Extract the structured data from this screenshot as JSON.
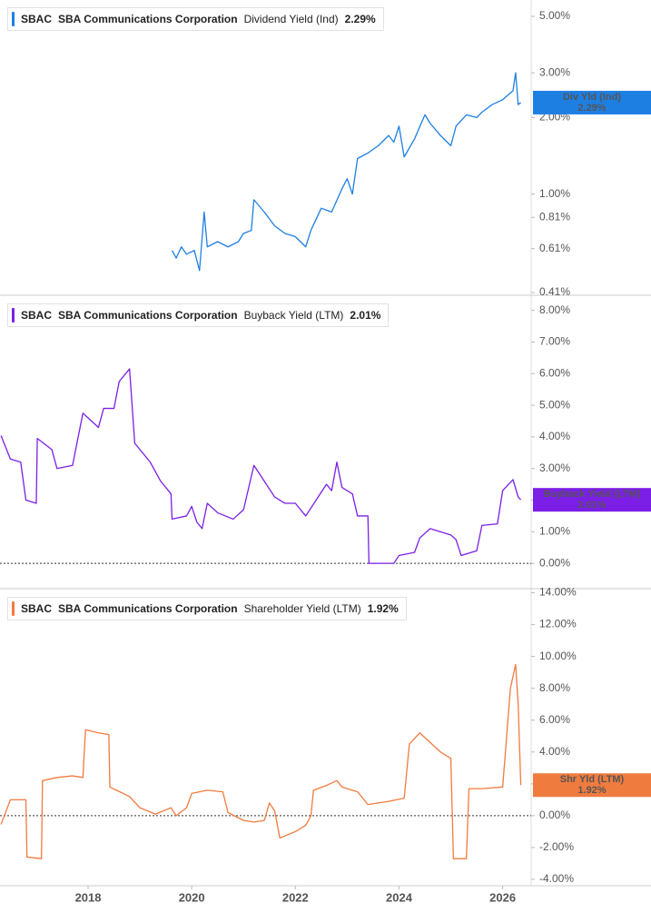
{
  "chart_data": [
    {
      "type": "line",
      "ticker": "SBAC",
      "company": "SBA Communications Corporation",
      "log_scale": true,
      "zero_line": false,
      "badge_label": "Div Yld (Ind)",
      "last_value": 2.29,
      "last_value_label": "2.29%",
      "x": [
        2019.62,
        2019.7,
        2019.8,
        2019.9,
        2020.05,
        2020.15,
        2020.24,
        2020.3,
        2020.5,
        2020.7,
        2020.9,
        2021.0,
        2021.15,
        2021.2,
        2021.4,
        2021.6,
        2021.8,
        2022.0,
        2022.2,
        2022.3,
        2022.5,
        2022.7,
        2022.9,
        2023.0,
        2023.1,
        2023.2,
        2023.4,
        2023.6,
        2023.8,
        2023.9,
        2024.0,
        2024.1,
        2024.3,
        2024.5,
        2024.6,
        2024.8,
        2025.0,
        2025.1,
        2025.3,
        2025.5,
        2025.6,
        2025.8,
        2026.0,
        2026.2,
        2026.25,
        2026.3,
        2026.35
      ],
      "series": [
        {
          "name": "Dividend Yield (Ind)",
          "color": "#1e7fe3",
          "values": [
            0.6,
            0.56,
            0.62,
            0.58,
            0.6,
            0.5,
            0.85,
            0.62,
            0.65,
            0.62,
            0.65,
            0.7,
            0.72,
            0.95,
            0.85,
            0.75,
            0.7,
            0.68,
            0.62,
            0.72,
            0.88,
            0.85,
            1.05,
            1.15,
            1.0,
            1.38,
            1.45,
            1.55,
            1.7,
            1.6,
            1.85,
            1.4,
            1.65,
            2.05,
            1.9,
            1.7,
            1.55,
            1.85,
            2.05,
            2.0,
            2.1,
            2.25,
            2.35,
            2.55,
            3.0,
            2.25,
            2.29
          ]
        }
      ],
      "xlim": [
        2016.3,
        2026.55
      ],
      "ylim": [
        0.4,
        5.8
      ],
      "yticks": [
        {
          "value": 5,
          "label": "5.00%"
        },
        {
          "value": 3,
          "label": "3.00%"
        },
        {
          "value": 2,
          "label": "2.00%"
        },
        {
          "value": 1,
          "label": "1.00%"
        },
        {
          "value": 0.81,
          "label": "0.81%"
        },
        {
          "value": 0.61,
          "label": "0.61%"
        },
        {
          "value": 0.41,
          "label": "0.41%"
        }
      ]
    },
    {
      "type": "line",
      "ticker": "SBAC",
      "company": "SBA Communications Corporation",
      "log_scale": false,
      "zero_line": true,
      "badge_label": "Buyback Yield (LTM)",
      "last_value": 2.01,
      "last_value_label": "2.01%",
      "x": [
        2016.32,
        2016.5,
        2016.7,
        2016.8,
        2017.0,
        2017.02,
        2017.3,
        2017.4,
        2017.7,
        2017.9,
        2018.0,
        2018.2,
        2018.3,
        2018.5,
        2018.6,
        2018.8,
        2018.9,
        2019.2,
        2019.4,
        2019.6,
        2019.62,
        2019.9,
        2020.0,
        2020.1,
        2020.2,
        2020.3,
        2020.5,
        2020.8,
        2021.0,
        2021.2,
        2021.4,
        2021.6,
        2021.8,
        2022.0,
        2022.2,
        2022.4,
        2022.6,
        2022.7,
        2022.8,
        2022.9,
        2023.1,
        2023.2,
        2023.4,
        2023.42,
        2023.9,
        2024.0,
        2024.3,
        2024.4,
        2024.6,
        2024.8,
        2025.0,
        2025.1,
        2025.2,
        2025.5,
        2025.6,
        2025.9,
        2026.0,
        2026.2,
        2026.3,
        2026.35
      ],
      "series": [
        {
          "name": "Buyback Yield (LTM)",
          "color": "#7b1fe6",
          "values": [
            4.04,
            3.3,
            3.2,
            2.0,
            1.9,
            3.95,
            3.6,
            3.0,
            3.1,
            4.75,
            4.6,
            4.3,
            4.9,
            4.9,
            5.75,
            6.15,
            3.8,
            3.2,
            2.6,
            2.2,
            1.4,
            1.5,
            1.8,
            1.3,
            1.1,
            1.9,
            1.6,
            1.4,
            1.7,
            3.1,
            2.6,
            2.1,
            1.9,
            1.9,
            1.5,
            2.0,
            2.5,
            2.3,
            3.2,
            2.4,
            2.2,
            1.5,
            1.5,
            0.0,
            0.0,
            0.25,
            0.35,
            0.8,
            1.1,
            1.0,
            0.9,
            0.75,
            0.25,
            0.4,
            1.2,
            1.25,
            2.3,
            2.65,
            2.1,
            2.01
          ]
        }
      ],
      "xlim": [
        2016.3,
        2026.55
      ],
      "ylim": [
        -0.8,
        8.45
      ],
      "yticks": [
        {
          "value": 8,
          "label": "8.00%"
        },
        {
          "value": 7,
          "label": "7.00%"
        },
        {
          "value": 6,
          "label": "6.00%"
        },
        {
          "value": 5,
          "label": "5.00%"
        },
        {
          "value": 4,
          "label": "4.00%"
        },
        {
          "value": 3,
          "label": "3.00%"
        },
        {
          "value": 2,
          "label": "2.00%"
        },
        {
          "value": 1,
          "label": "1.00%"
        },
        {
          "value": 0,
          "label": "0.00%"
        }
      ]
    },
    {
      "type": "line",
      "ticker": "SBAC",
      "company": "SBA Communications Corporation",
      "log_scale": false,
      "zero_line": true,
      "badge_label": "Shr Yld (LTM)",
      "last_value": 1.92,
      "last_value_label": "1.92%",
      "x": [
        2016.32,
        2016.5,
        2016.8,
        2016.82,
        2017.1,
        2017.12,
        2017.4,
        2017.7,
        2017.9,
        2017.95,
        2018.2,
        2018.4,
        2018.42,
        2018.8,
        2019.0,
        2019.3,
        2019.6,
        2019.7,
        2019.9,
        2020.0,
        2020.3,
        2020.6,
        2020.7,
        2021.0,
        2021.2,
        2021.4,
        2021.5,
        2021.6,
        2021.7,
        2022.0,
        2022.2,
        2022.3,
        2022.35,
        2022.6,
        2022.8,
        2022.9,
        2023.2,
        2023.4,
        2023.8,
        2024.1,
        2024.2,
        2024.4,
        2024.6,
        2024.8,
        2025.0,
        2025.05,
        2025.3,
        2025.35,
        2025.6,
        2026.0,
        2026.15,
        2026.25,
        2026.3,
        2026.35
      ],
      "series": [
        {
          "name": "Shareholder Yield (LTM)",
          "color": "#f07b3f",
          "values": [
            -0.55,
            1.0,
            1.0,
            -2.6,
            -2.7,
            2.2,
            2.4,
            2.5,
            2.4,
            5.4,
            5.2,
            5.1,
            1.8,
            1.2,
            0.5,
            0.1,
            0.5,
            0.0,
            0.5,
            1.4,
            1.6,
            1.5,
            0.2,
            -0.3,
            -0.4,
            -0.3,
            0.8,
            0.3,
            -1.4,
            -1.0,
            -0.6,
            0.0,
            1.6,
            1.9,
            2.2,
            1.8,
            1.5,
            0.7,
            0.9,
            1.1,
            4.5,
            5.2,
            4.6,
            4.0,
            3.6,
            -2.7,
            -2.7,
            1.7,
            1.7,
            1.8,
            8.0,
            9.5,
            7.0,
            1.92
          ]
        }
      ],
      "xlim": [
        2016.3,
        2026.55
      ],
      "ylim": [
        -4.4,
        14.2
      ],
      "yticks": [
        {
          "value": 14,
          "label": "14.00%"
        },
        {
          "value": 12,
          "label": "12.00%"
        },
        {
          "value": 10,
          "label": "10.00%"
        },
        {
          "value": 8,
          "label": "8.00%"
        },
        {
          "value": 6,
          "label": "6.00%"
        },
        {
          "value": 4,
          "label": "4.00%"
        },
        {
          "value": 2,
          "label": "2.00%"
        },
        {
          "value": 0,
          "label": "0.00%"
        },
        {
          "value": -2,
          "label": "-2.00%"
        },
        {
          "value": -4,
          "label": "-4.00%"
        }
      ],
      "xticks": [
        2018,
        2020,
        2022,
        2024,
        2026
      ]
    }
  ]
}
